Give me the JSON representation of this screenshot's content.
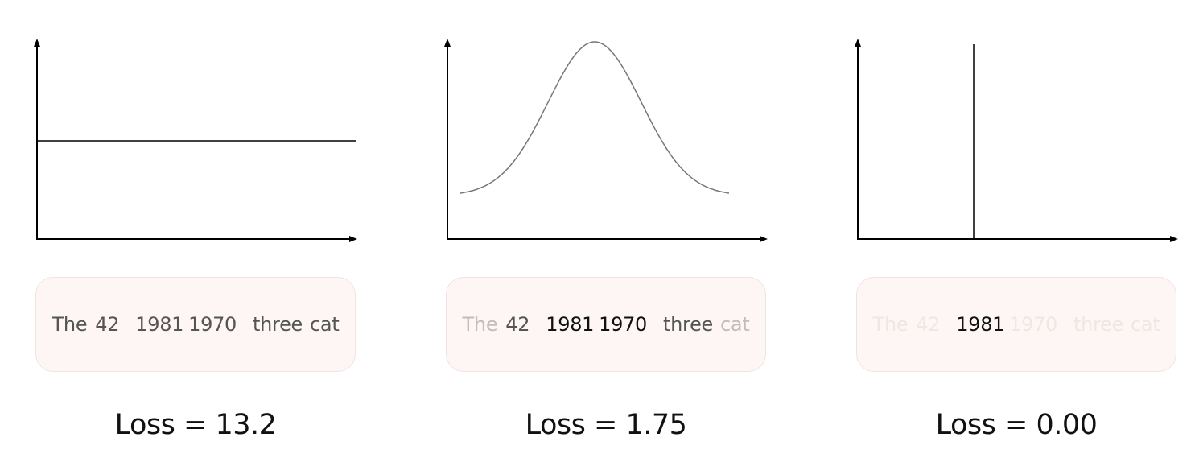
{
  "panels": [
    {
      "distribution": "uniform",
      "tokens": [
        {
          "text": "The",
          "emphasis": "medium"
        },
        {
          "text": "42",
          "emphasis": "medium"
        },
        {
          "text": "1981",
          "emphasis": "medium"
        },
        {
          "text": "1970",
          "emphasis": "medium"
        },
        {
          "text": "three",
          "emphasis": "medium"
        },
        {
          "text": "cat",
          "emphasis": "medium"
        }
      ],
      "loss_label": "Loss = 13.2"
    },
    {
      "distribution": "gaussian",
      "tokens": [
        {
          "text": "The",
          "emphasis": "faint"
        },
        {
          "text": "42",
          "emphasis": "medium"
        },
        {
          "text": "1981",
          "emphasis": "strong"
        },
        {
          "text": "1970",
          "emphasis": "strong"
        },
        {
          "text": "three",
          "emphasis": "medium"
        },
        {
          "text": "cat",
          "emphasis": "faint"
        }
      ],
      "loss_label": "Loss = 1.75"
    },
    {
      "distribution": "spike",
      "tokens": [
        {
          "text": "The",
          "emphasis": "ghost"
        },
        {
          "text": "42",
          "emphasis": "ghost"
        },
        {
          "text": "1981",
          "emphasis": "strong"
        },
        {
          "text": "1970",
          "emphasis": "ghost"
        },
        {
          "text": "three",
          "emphasis": "ghost"
        },
        {
          "text": "cat",
          "emphasis": "ghost"
        }
      ],
      "loss_label": "Loss = 0.00"
    }
  ],
  "colors": {
    "axis": "#000000",
    "curve": "#777777",
    "box_fill": "#fdf6f4",
    "token_strong": "#111111",
    "token_medium": "#555555",
    "token_faint": "#c2bcba",
    "token_ghost": "#f0e7e4"
  }
}
